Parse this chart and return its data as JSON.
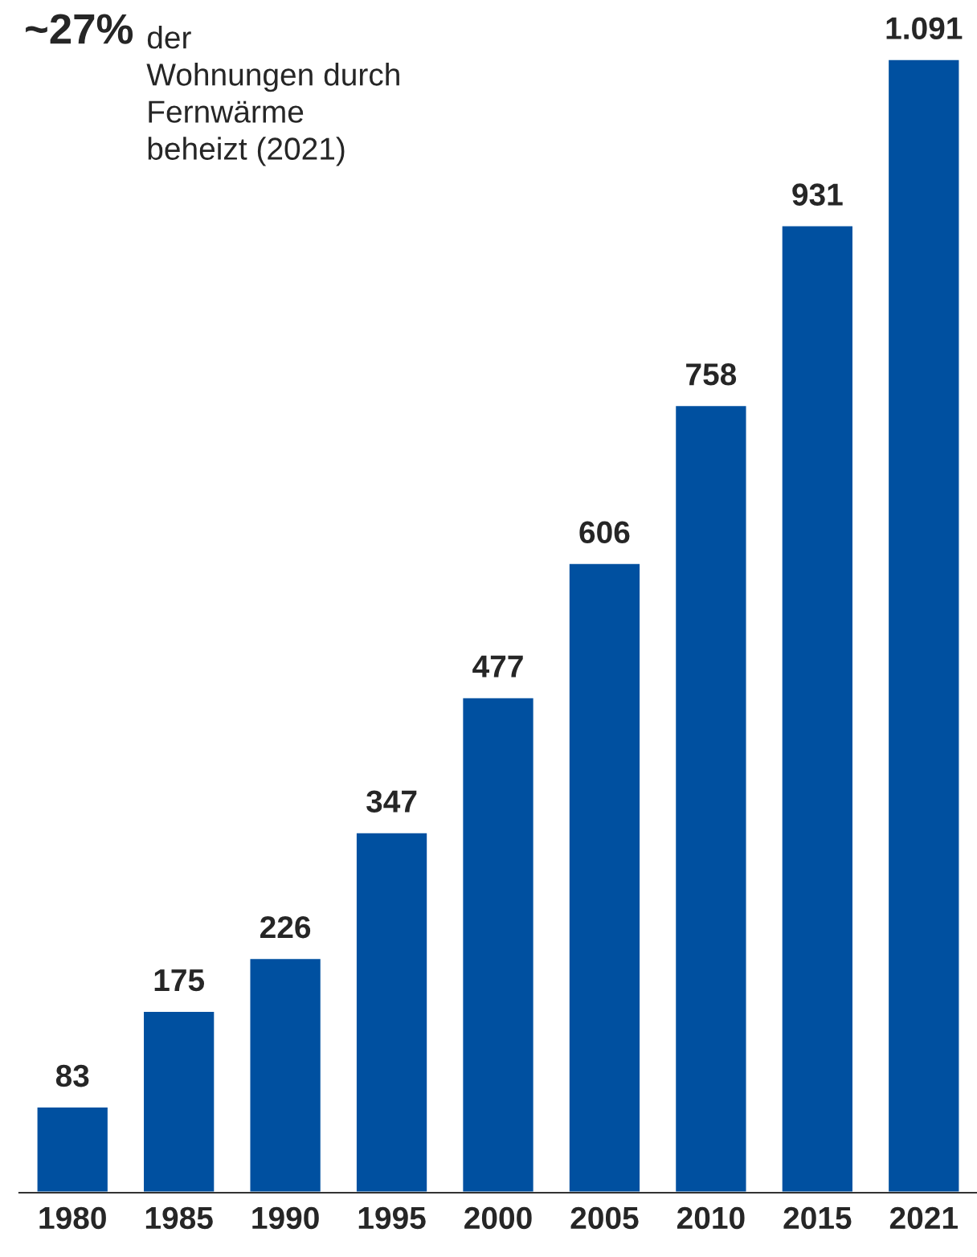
{
  "chart_data": {
    "type": "bar",
    "categories": [
      "1980",
      "1985",
      "1990",
      "1995",
      "2000",
      "2005",
      "2010",
      "2015",
      "2021"
    ],
    "values": [
      83,
      175,
      226,
      347,
      477,
      606,
      758,
      931,
      1091
    ],
    "value_labels": [
      "83",
      "175",
      "226",
      "347",
      "477",
      "606",
      "758",
      "931",
      "1.091"
    ],
    "color": "#0050a0",
    "annotations": [
      "~27%",
      "der\nWohnungen durch\nFernwärme\nbeheizt (2021)"
    ],
    "grid": false,
    "legend": false
  }
}
